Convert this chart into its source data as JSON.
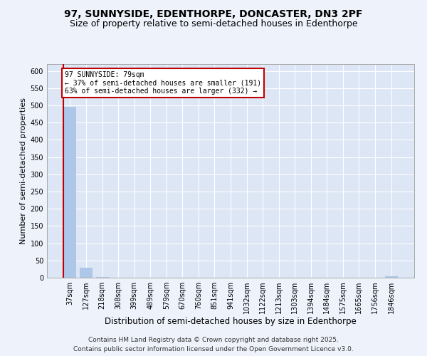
{
  "title1": "97, SUNNYSIDE, EDENTHORPE, DONCASTER, DN3 2PF",
  "title2": "Size of property relative to semi-detached houses in Edenthorpe",
  "xlabel": "Distribution of semi-detached houses by size in Edenthorpe",
  "ylabel": "Number of semi-detached properties",
  "categories": [
    "37sqm",
    "127sqm",
    "218sqm",
    "308sqm",
    "399sqm",
    "489sqm",
    "579sqm",
    "670sqm",
    "760sqm",
    "851sqm",
    "941sqm",
    "1032sqm",
    "1122sqm",
    "1213sqm",
    "1303sqm",
    "1394sqm",
    "1484sqm",
    "1575sqm",
    "1665sqm",
    "1756sqm",
    "1846sqm"
  ],
  "values": [
    495,
    28,
    2,
    0,
    0,
    0,
    0,
    0,
    0,
    0,
    0,
    0,
    0,
    0,
    0,
    0,
    0,
    0,
    0,
    0,
    4
  ],
  "bar_color": "#aec6e8",
  "highlight_index": 0,
  "highlight_color": "#c00000",
  "annotation_lines": [
    "97 SUNNYSIDE: 79sqm",
    "← 37% of semi-detached houses are smaller (191)",
    "63% of semi-detached houses are larger (332) →"
  ],
  "annotation_box_color": "#c00000",
  "ylim": [
    0,
    620
  ],
  "yticks": [
    0,
    50,
    100,
    150,
    200,
    250,
    300,
    350,
    400,
    450,
    500,
    550,
    600
  ],
  "footer": "Contains HM Land Registry data © Crown copyright and database right 2025.\nContains public sector information licensed under the Open Government Licence v3.0.",
  "bg_color": "#eef2fb",
  "plot_bg_color": "#dce6f5",
  "grid_color": "#ffffff",
  "title1_fontsize": 10,
  "title2_fontsize": 9,
  "xlabel_fontsize": 8.5,
  "ylabel_fontsize": 8,
  "tick_fontsize": 7,
  "footer_fontsize": 6.5
}
